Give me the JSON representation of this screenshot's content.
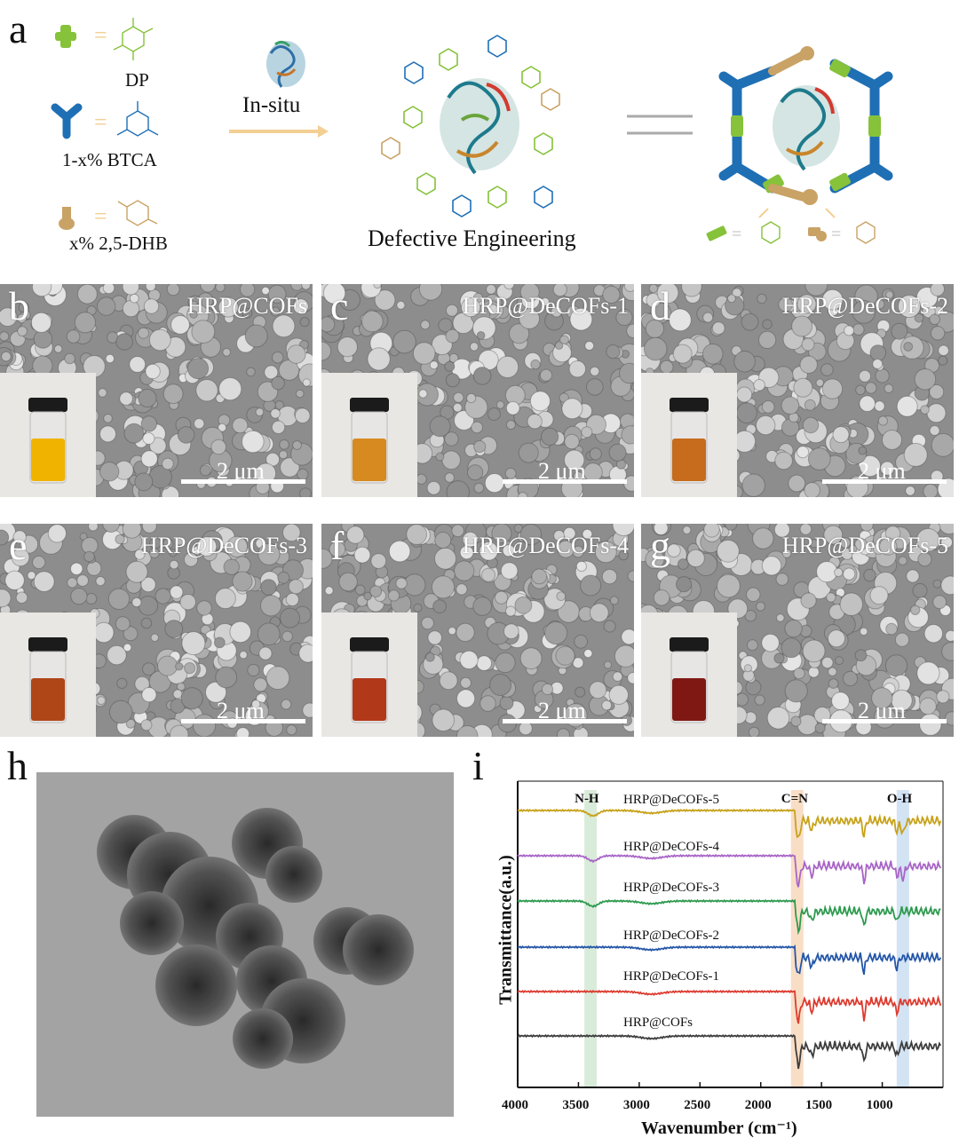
{
  "panel_a": {
    "letter": "a",
    "dp": "DP",
    "btca": "1-x% BTCA",
    "dhb": "x% 2,5-DHB",
    "insitu": "In-situ",
    "defective": "Defective Engineering",
    "colors": {
      "dp": "#86c23a",
      "btca": "#1f6fb5",
      "dhb": "#c9a265",
      "arrow": "#f3cf94"
    }
  },
  "sem_panels": [
    {
      "letter": "b",
      "title": "HRP@COFs",
      "scale": "2 μm",
      "liquid": "#f0b300"
    },
    {
      "letter": "c",
      "title": "HRP@DeCOFs-1",
      "scale": "2 μm",
      "liquid": "#d78a1f"
    },
    {
      "letter": "d",
      "title": "HRP@DeCOFs-2",
      "scale": "2 μm",
      "liquid": "#c66c1c"
    },
    {
      "letter": "e",
      "title": "HRP@DeCOFs-3",
      "scale": "2 μm",
      "liquid": "#ae4618"
    },
    {
      "letter": "f",
      "title": "HRP@DeCOFs-4",
      "scale": "2 μm",
      "liquid": "#b2381a"
    },
    {
      "letter": "g",
      "title": "HRP@DeCOFs-5",
      "scale": "2 μm",
      "liquid": "#7f1813"
    }
  ],
  "panel_h": {
    "letter": "h"
  },
  "panel_i": {
    "letter": "i",
    "chart_data": {
      "type": "line",
      "xlabel": "Wavenumber (cm⁻¹)",
      "ylabel": "Transmittance(a.u.)",
      "xlim": [
        4000,
        500
      ],
      "xticks": [
        4000,
        3500,
        3000,
        2500,
        2000,
        1500,
        1000
      ],
      "bands": [
        {
          "label": "N-H",
          "x": 3400,
          "color": "#cfe6cf"
        },
        {
          "label": "C=N",
          "x": 1700,
          "color": "#f8d6b8"
        },
        {
          "label": "O-H",
          "x": 830,
          "color": "#c7dcf1"
        }
      ],
      "series": [
        {
          "name": "HRP@DeCOFs-5",
          "color": "#c7a21a"
        },
        {
          "name": "HRP@DeCOFs-4",
          "color": "#a865c6"
        },
        {
          "name": "HRP@DeCOFs-3",
          "color": "#2e9a4f"
        },
        {
          "name": "HRP@DeCOFs-2",
          "color": "#2456a8"
        },
        {
          "name": "HRP@DeCOFs-1",
          "color": "#dd3a2e"
        },
        {
          "name": "HRP@COFs",
          "color": "#3d3d3d"
        }
      ]
    }
  }
}
